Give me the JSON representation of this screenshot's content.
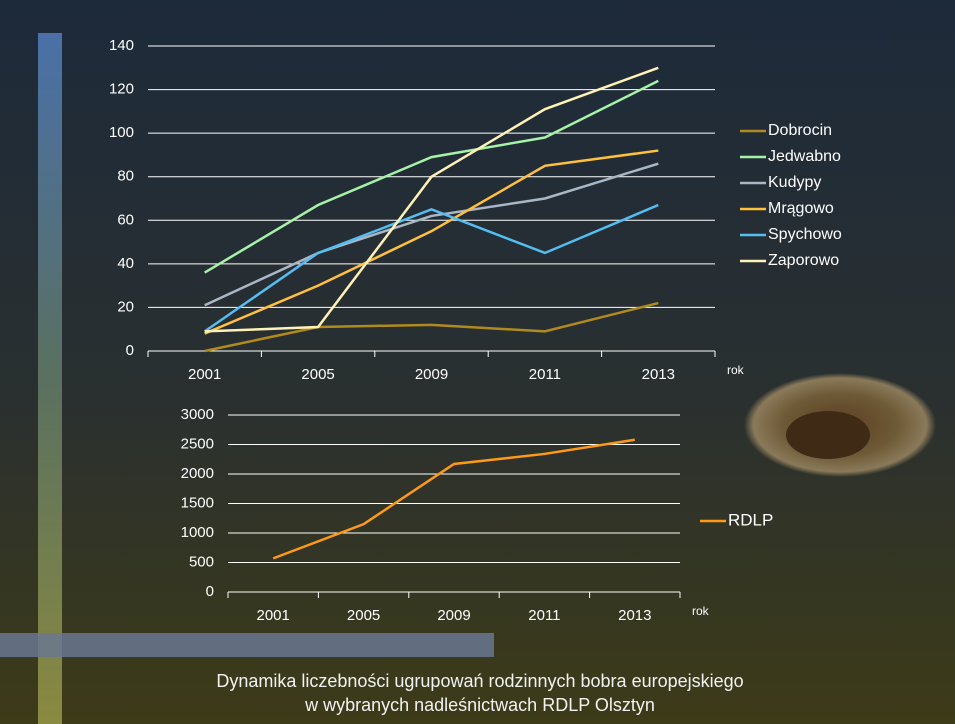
{
  "chart_data": [
    {
      "type": "line",
      "x_label": "rok",
      "categories": [
        "2001",
        "2005",
        "2009",
        "2011",
        "2013"
      ],
      "ylim": [
        0,
        140
      ],
      "yticks": [
        0,
        20,
        40,
        60,
        80,
        100,
        120,
        140
      ],
      "grid": true,
      "legend": "right",
      "series": [
        {
          "name": "Dobrocin",
          "color": "#b08a1c",
          "values": [
            0,
            11,
            12,
            9,
            22
          ]
        },
        {
          "name": "Jedwabno",
          "color": "#a6f2a6",
          "values": [
            36,
            67,
            89,
            98,
            124
          ]
        },
        {
          "name": "Kudypy",
          "color": "#a9b6c4",
          "values": [
            21,
            45,
            62,
            70,
            86
          ]
        },
        {
          "name": "Mrągowo",
          "color": "#ffc13a",
          "values": [
            8,
            30,
            55,
            85,
            92
          ]
        },
        {
          "name": "Spychowo",
          "color": "#55bdf2",
          "values": [
            9,
            45,
            65,
            45,
            67
          ]
        },
        {
          "name": "Zaporowo",
          "color": "#fff2b8",
          "values": [
            9,
            11,
            80,
            111,
            130
          ]
        }
      ]
    },
    {
      "type": "line",
      "x_label": "rok",
      "categories": [
        "2001",
        "2005",
        "2009",
        "2011",
        "2013"
      ],
      "ylim": [
        0,
        3000
      ],
      "yticks": [
        0,
        500,
        1000,
        1500,
        2000,
        2500,
        3000
      ],
      "grid": true,
      "legend": "right",
      "series": [
        {
          "name": "RDLP",
          "color": "#ff9a14",
          "values": [
            570,
            1150,
            2170,
            2340,
            2580
          ]
        }
      ]
    }
  ],
  "caption": [
    "Dynamika liczebności ugrupowań rodzinnych bobra europejskiego",
    "w wybranych nadleśnictwach RDLP Olsztyn"
  ]
}
